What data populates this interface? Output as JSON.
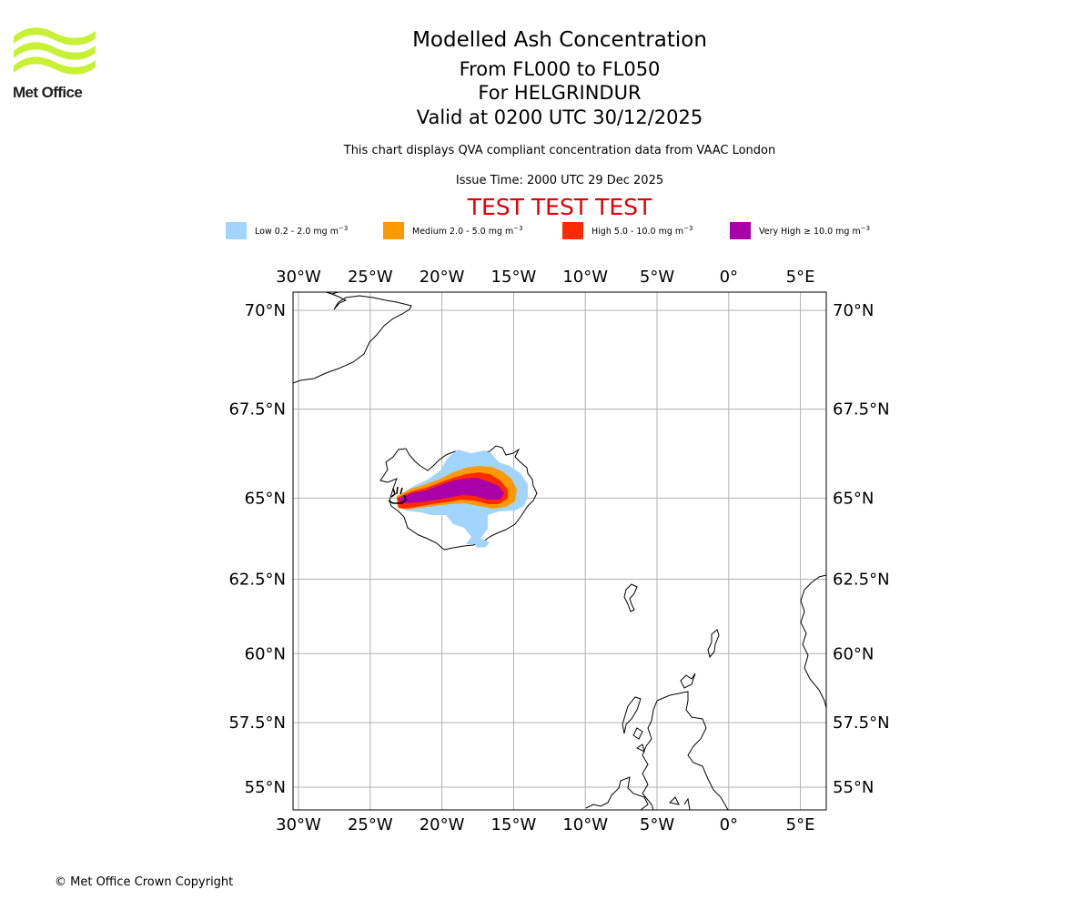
{
  "logo": {
    "text": "Met Office",
    "accent_color": "#c8f034"
  },
  "header": {
    "title": "Modelled Ash Concentration",
    "levels": "From FL000 to FL050",
    "volcano": "For HELGRINDUR",
    "valid": "Valid at 0200 UTC 30/12/2025",
    "note": "This chart displays QVA compliant concentration data from VAAC London",
    "issue": "Issue Time: 2000 UTC 29 Dec 2025",
    "test_banner": "TEST TEST TEST"
  },
  "legend": [
    {
      "label": "Low 0.2 - 2.0 mg m",
      "unit_exp": "−3",
      "color": "#a1d4ff"
    },
    {
      "label": "Medium 2.0 - 5.0 mg m",
      "unit_exp": "−3",
      "color": "#ff9900"
    },
    {
      "label": "High 5.0 - 10.0 mg m",
      "unit_exp": "−3",
      "color": "#ff2a00"
    },
    {
      "label": "Very High ≥ 10.0 mg m",
      "unit_exp": "−3",
      "color": "#aa00aa"
    }
  ],
  "map": {
    "lon_ticks": [
      "30°W",
      "25°W",
      "20°W",
      "15°W",
      "10°W",
      "5°W",
      "0°",
      "5°E"
    ],
    "lat_ticks": [
      "70°N",
      "67.5°N",
      "65°N",
      "62.5°N",
      "60°N",
      "57.5°N",
      "55°N"
    ],
    "lon_values": [
      -30,
      -25,
      -20,
      -15,
      -10,
      -5,
      0,
      5
    ],
    "lat_values": [
      70,
      67.5,
      65,
      62.5,
      60,
      57.5,
      55
    ],
    "extent": {
      "lon_min": -30.5,
      "lon_max": 6.7,
      "lat_min": 54.3,
      "lat_max": 70.5
    },
    "grid_color": "#b0b0b0",
    "volcano_lonlat": [
      -23.1,
      64.95
    ]
  },
  "footer": {
    "copyright": "© Met Office Crown Copyright"
  }
}
